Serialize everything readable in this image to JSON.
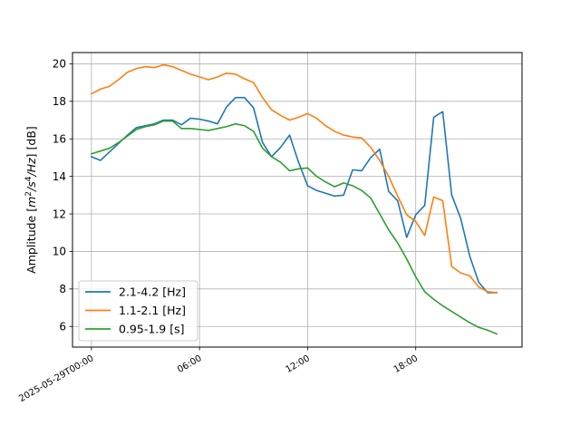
{
  "chart_data": {
    "type": "line",
    "ylabel_parts": {
      "prefix": "Amplitude [",
      "m": "m",
      "m_exp": "2",
      "slash1": "/",
      "s": "s",
      "s_exp": "4",
      "slash2": "/",
      "hz": "Hz",
      "suffix": "] [dB]"
    },
    "x_ticks": [
      {
        "hour": 0,
        "label": "2025-05-29T00:00"
      },
      {
        "hour": 6,
        "label": "06:00"
      },
      {
        "hour": 12,
        "label": "12:00"
      },
      {
        "hour": 18,
        "label": "18:00"
      }
    ],
    "y_ticks": [
      6,
      8,
      10,
      12,
      14,
      16,
      18,
      20
    ],
    "xlim": [
      -1.05,
      23.9
    ],
    "ylim": [
      4.9,
      20.6
    ],
    "grid": true,
    "legend_position": "lower-left",
    "series": [
      {
        "name": "2.1-4.2 [Hz]",
        "color": "#1f77b4",
        "x": [
          0,
          0.5,
          1,
          1.5,
          2,
          2.5,
          3,
          3.5,
          4,
          4.5,
          5,
          5.5,
          6,
          6.5,
          7,
          7.5,
          8,
          8.5,
          9,
          9.5,
          10,
          10.5,
          11,
          11.5,
          12,
          12.5,
          13,
          13.5,
          14,
          14.5,
          15,
          15.5,
          16,
          16.5,
          17,
          17.5,
          18,
          18.5,
          19,
          19.5,
          20,
          20.5,
          21,
          21.5,
          22,
          22.5
        ],
        "values": [
          15.05,
          14.85,
          15.3,
          15.75,
          16.2,
          16.6,
          16.7,
          16.8,
          17.0,
          17.0,
          16.75,
          17.1,
          17.05,
          16.95,
          16.8,
          17.7,
          18.2,
          18.2,
          17.65,
          15.8,
          15.05,
          15.55,
          16.2,
          14.75,
          13.5,
          13.25,
          13.1,
          12.95,
          13.0,
          14.35,
          14.3,
          15.0,
          15.45,
          13.2,
          12.7,
          10.75,
          11.95,
          12.45,
          17.15,
          17.45,
          13.0,
          11.75,
          9.75,
          8.35,
          7.8,
          7.8
        ]
      },
      {
        "name": "1.1-2.1 [Hz]",
        "color": "#ff7f0e",
        "x": [
          0,
          0.5,
          1,
          1.5,
          2,
          2.5,
          3,
          3.5,
          4,
          4.5,
          5,
          5.5,
          6,
          6.5,
          7,
          7.5,
          8,
          8.5,
          9,
          9.5,
          10,
          10.5,
          11,
          11.5,
          12,
          12.5,
          13,
          13.5,
          14,
          14.5,
          15,
          15.5,
          16,
          16.5,
          17,
          17.5,
          18,
          18.5,
          19,
          19.5,
          20,
          20.5,
          21,
          21.5,
          22,
          22.5
        ],
        "values": [
          18.4,
          18.65,
          18.8,
          19.15,
          19.55,
          19.75,
          19.85,
          19.8,
          19.95,
          19.85,
          19.65,
          19.45,
          19.3,
          19.15,
          19.3,
          19.5,
          19.45,
          19.2,
          19.0,
          18.2,
          17.55,
          17.25,
          17.0,
          17.15,
          17.35,
          17.1,
          16.7,
          16.4,
          16.2,
          16.1,
          16.05,
          15.55,
          14.85,
          14.0,
          12.95,
          11.95,
          11.6,
          10.85,
          12.9,
          12.7,
          9.2,
          8.85,
          8.7,
          8.1,
          7.85,
          7.8
        ]
      },
      {
        "name": "0.95-1.9 [s]",
        "color": "#2ca02c",
        "x": [
          0,
          0.5,
          1,
          1.5,
          2,
          2.5,
          3,
          3.5,
          4,
          4.5,
          5,
          5.5,
          6,
          6.5,
          7,
          7.5,
          8,
          8.5,
          9,
          9.5,
          10,
          10.5,
          11,
          11.5,
          12,
          12.5,
          13,
          13.5,
          14,
          14.5,
          15,
          15.5,
          16,
          16.5,
          17,
          17.5,
          18,
          18.5,
          19,
          19.5,
          20,
          20.5,
          21,
          21.5,
          22,
          22.5
        ],
        "values": [
          15.2,
          15.35,
          15.5,
          15.8,
          16.15,
          16.5,
          16.65,
          16.75,
          16.95,
          16.95,
          16.55,
          16.55,
          16.5,
          16.45,
          16.55,
          16.65,
          16.8,
          16.7,
          16.4,
          15.5,
          15.05,
          14.75,
          14.3,
          14.4,
          14.45,
          14.0,
          13.7,
          13.45,
          13.65,
          13.5,
          13.25,
          12.85,
          12.0,
          11.15,
          10.45,
          9.6,
          8.65,
          7.85,
          7.45,
          7.1,
          6.8,
          6.5,
          6.2,
          5.95,
          5.8,
          5.6
        ]
      }
    ]
  }
}
